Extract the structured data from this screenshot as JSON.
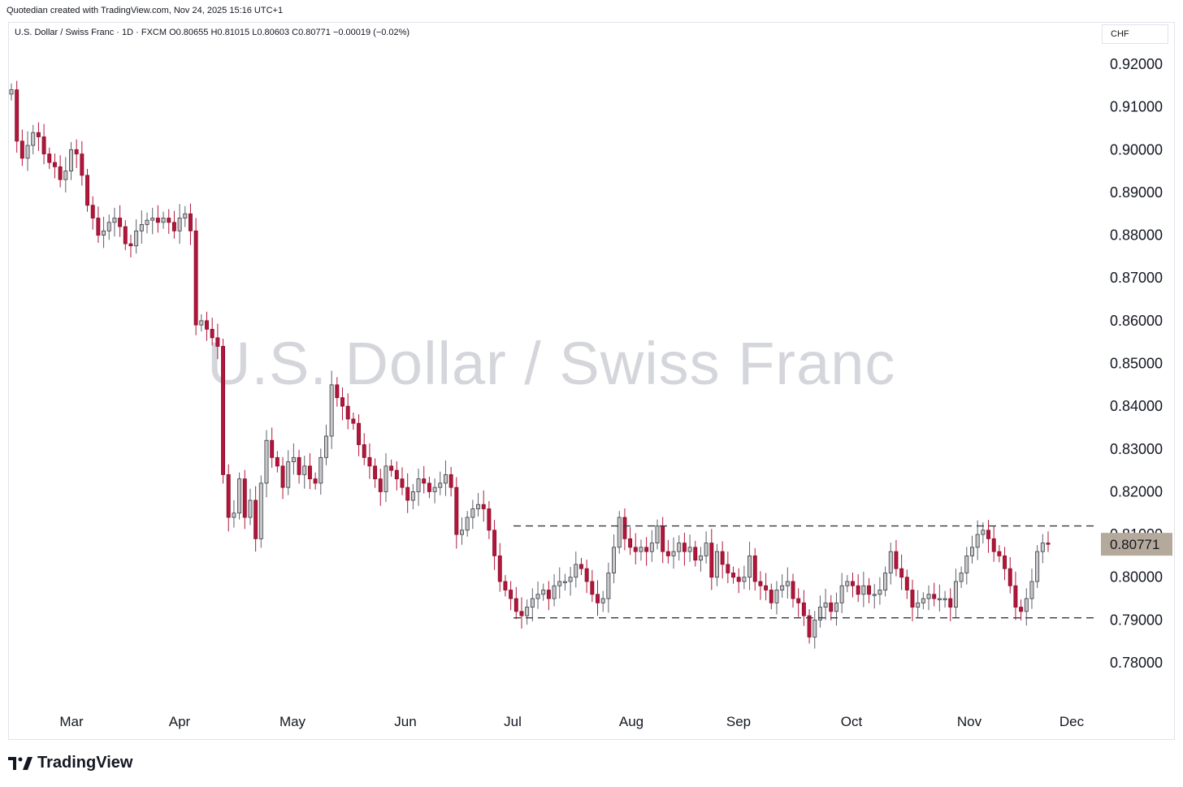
{
  "caption": "Quotedian created with TradingView.com, Nov 24, 2025 15:16 UTC+1",
  "legend": "U.S. Dollar / Swiss Franc · 1D · FXCM  O0.80655  H0.81015  L0.80603  C0.80771  −0.00019 (−0.02%)",
  "currency": "CHF",
  "watermark": "U.S. Dollar / Swiss Franc",
  "brand": "TradingView",
  "colors": {
    "up": "#c8c8c8",
    "up_border": "#363a45",
    "down": "#b2163b",
    "down_border": "#880e2b",
    "price_tag": "#b5a99b",
    "grid": "#ffffff",
    "dash": "#363a45"
  },
  "chart_data": {
    "type": "candlestick",
    "y_ticks": [
      "0.92000",
      "0.91000",
      "0.90000",
      "0.89000",
      "0.88000",
      "0.87000",
      "0.86000",
      "0.85000",
      "0.84000",
      "0.83000",
      "0.82000",
      "0.81000",
      "0.80000",
      "0.79000",
      "0.78000"
    ],
    "y_range": [
      0.775,
      0.925
    ],
    "x_labels": [
      "Mar",
      "Apr",
      "May",
      "Jun",
      "Jul",
      "Aug",
      "Sep",
      "Oct",
      "Nov",
      "Dec"
    ],
    "last_price": "0.80771",
    "last_value": 0.80771,
    "resistance": 0.812,
    "support": 0.7905,
    "closes": [
      0.914,
      0.902,
      0.898,
      0.901,
      0.904,
      0.903,
      0.899,
      0.897,
      0.896,
      0.893,
      0.895,
      0.9,
      0.899,
      0.894,
      0.887,
      0.884,
      0.88,
      0.881,
      0.883,
      0.884,
      0.882,
      0.878,
      0.8775,
      0.881,
      0.8825,
      0.8835,
      0.884,
      0.883,
      0.884,
      0.883,
      0.881,
      0.884,
      0.885,
      0.881,
      0.859,
      0.86,
      0.858,
      0.856,
      0.854,
      0.824,
      0.814,
      0.815,
      0.823,
      0.814,
      0.818,
      0.809,
      0.822,
      0.832,
      0.828,
      0.826,
      0.821,
      0.827,
      0.828,
      0.824,
      0.826,
      0.823,
      0.822,
      0.828,
      0.833,
      0.845,
      0.842,
      0.84,
      0.837,
      0.836,
      0.831,
      0.828,
      0.826,
      0.823,
      0.82,
      0.826,
      0.825,
      0.823,
      0.821,
      0.818,
      0.82,
      0.823,
      0.822,
      0.82,
      0.821,
      0.822,
      0.824,
      0.821,
      0.81,
      0.811,
      0.814,
      0.816,
      0.817,
      0.816,
      0.811,
      0.805,
      0.799,
      0.797,
      0.795,
      0.792,
      0.791,
      0.793,
      0.795,
      0.796,
      0.797,
      0.795,
      0.798,
      0.799,
      0.799,
      0.8,
      0.803,
      0.802,
      0.799,
      0.796,
      0.794,
      0.795,
      0.801,
      0.807,
      0.814,
      0.809,
      0.807,
      0.806,
      0.807,
      0.806,
      0.808,
      0.812,
      0.806,
      0.805,
      0.806,
      0.808,
      0.806,
      0.807,
      0.804,
      0.805,
      0.808,
      0.8,
      0.806,
      0.803,
      0.801,
      0.8,
      0.799,
      0.8,
      0.805,
      0.799,
      0.798,
      0.797,
      0.794,
      0.797,
      0.798,
      0.799,
      0.795,
      0.794,
      0.791,
      0.786,
      0.79,
      0.793,
      0.794,
      0.792,
      0.794,
      0.798,
      0.799,
      0.798,
      0.796,
      0.798,
      0.796,
      0.796,
      0.797,
      0.801,
      0.806,
      0.802,
      0.8,
      0.797,
      0.793,
      0.794,
      0.795,
      0.796,
      0.795,
      0.795,
      0.795,
      0.793,
      0.799,
      0.801,
      0.805,
      0.807,
      0.81,
      0.811,
      0.809,
      0.806,
      0.805,
      0.802,
      0.798,
      0.793,
      0.792,
      0.795,
      0.799,
      0.806,
      0.808,
      0.8077
    ]
  }
}
